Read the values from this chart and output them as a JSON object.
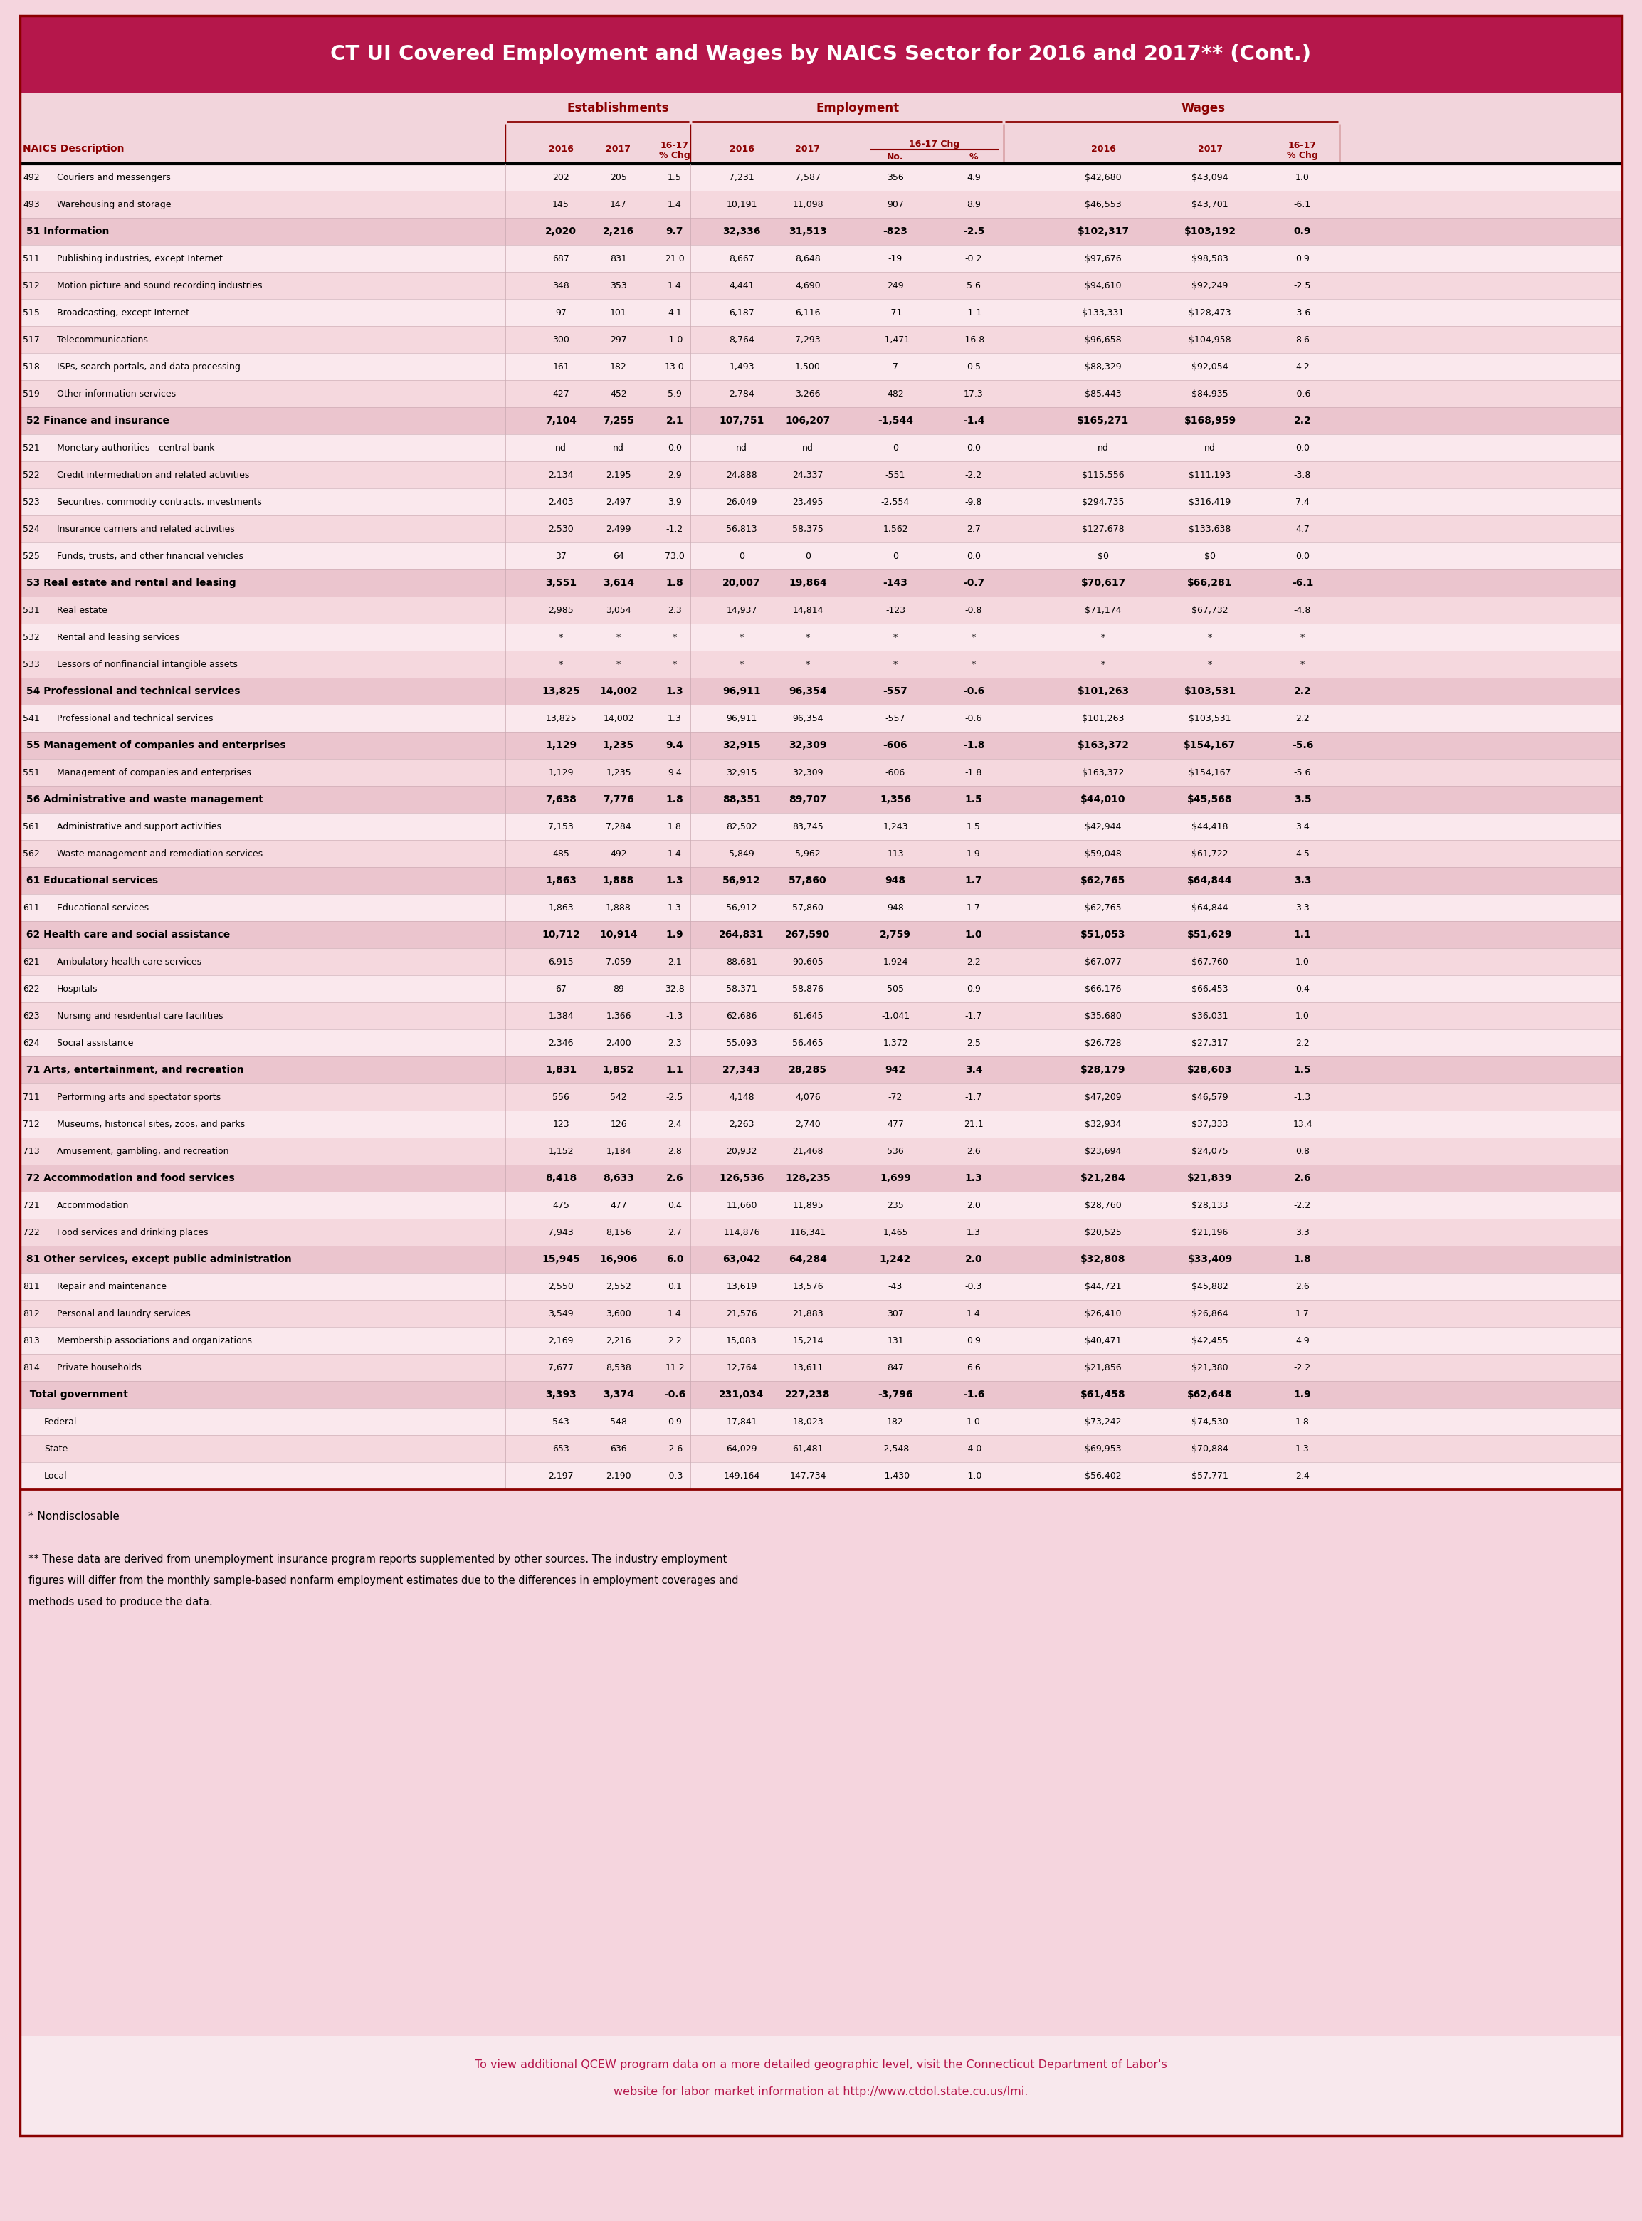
{
  "title": "CT UI Covered Employment and Wages by NAICS Sector for 2016 and 2017** (Cont.)",
  "title_bg": "#B5174B",
  "header_bg": "#F2D5DC",
  "row_bg1": "#FAE8ED",
  "row_bg2": "#F5D8DE",
  "sector_bg": "#EBC5CE",
  "col_hdr_color": "#8B0000",
  "body_color": "#000000",
  "link_color": "#B5174B",
  "footnote1": "* Nondisclosable",
  "footnote2": "** These data are derived from unemployment insurance program reports supplemented by other sources. The industry employment figures will differ from the monthly sample-based nonfarm employment estimates due to the differences in employment coverages and methods used to produce the data.",
  "footer_text": "To view additional QCEW program data on a more detailed geographic level, visit the Connecticut Department of Labor's website for labor market information at http://www.ctdol.state.cu.us/lmi.",
  "rows": [
    {
      "code": "492",
      "desc": "Couriers and messengers",
      "bold": false,
      "sector": false,
      "e16": "202",
      "e17": "205",
      "echg": "1.5",
      "emp16": "7,231",
      "emp17": "7,587",
      "eno": "356",
      "epct": "4.9",
      "w16": "$42,680",
      "w17": "$43,094",
      "wchg": "1.0"
    },
    {
      "code": "493",
      "desc": "Warehousing and storage",
      "bold": false,
      "sector": false,
      "e16": "145",
      "e17": "147",
      "echg": "1.4",
      "emp16": "10,191",
      "emp17": "11,098",
      "eno": "907",
      "epct": "8.9",
      "w16": "$46,553",
      "w17": "$43,701",
      "wchg": "-6.1"
    },
    {
      "code": "51",
      "desc": "Information",
      "bold": true,
      "sector": true,
      "e16": "2,020",
      "e17": "2,216",
      "echg": "9.7",
      "emp16": "32,336",
      "emp17": "31,513",
      "eno": "-823",
      "epct": "-2.5",
      "w16": "$102,317",
      "w17": "$103,192",
      "wchg": "0.9"
    },
    {
      "code": "511",
      "desc": "Publishing industries, except Internet",
      "bold": false,
      "sector": false,
      "e16": "687",
      "e17": "831",
      "echg": "21.0",
      "emp16": "8,667",
      "emp17": "8,648",
      "eno": "-19",
      "epct": "-0.2",
      "w16": "$97,676",
      "w17": "$98,583",
      "wchg": "0.9"
    },
    {
      "code": "512",
      "desc": "Motion picture and sound recording industries",
      "bold": false,
      "sector": false,
      "e16": "348",
      "e17": "353",
      "echg": "1.4",
      "emp16": "4,441",
      "emp17": "4,690",
      "eno": "249",
      "epct": "5.6",
      "w16": "$94,610",
      "w17": "$92,249",
      "wchg": "-2.5"
    },
    {
      "code": "515",
      "desc": "Broadcasting, except Internet",
      "bold": false,
      "sector": false,
      "e16": "97",
      "e17": "101",
      "echg": "4.1",
      "emp16": "6,187",
      "emp17": "6,116",
      "eno": "-71",
      "epct": "-1.1",
      "w16": "$133,331",
      "w17": "$128,473",
      "wchg": "-3.6"
    },
    {
      "code": "517",
      "desc": "Telecommunications",
      "bold": false,
      "sector": false,
      "e16": "300",
      "e17": "297",
      "echg": "-1.0",
      "emp16": "8,764",
      "emp17": "7,293",
      "eno": "-1,471",
      "epct": "-16.8",
      "w16": "$96,658",
      "w17": "$104,958",
      "wchg": "8.6"
    },
    {
      "code": "518",
      "desc": "ISPs, search portals, and data processing",
      "bold": false,
      "sector": false,
      "e16": "161",
      "e17": "182",
      "echg": "13.0",
      "emp16": "1,493",
      "emp17": "1,500",
      "eno": "7",
      "epct": "0.5",
      "w16": "$88,329",
      "w17": "$92,054",
      "wchg": "4.2"
    },
    {
      "code": "519",
      "desc": "Other information services",
      "bold": false,
      "sector": false,
      "e16": "427",
      "e17": "452",
      "echg": "5.9",
      "emp16": "2,784",
      "emp17": "3,266",
      "eno": "482",
      "epct": "17.3",
      "w16": "$85,443",
      "w17": "$84,935",
      "wchg": "-0.6"
    },
    {
      "code": "52",
      "desc": "Finance and insurance",
      "bold": true,
      "sector": true,
      "e16": "7,104",
      "e17": "7,255",
      "echg": "2.1",
      "emp16": "107,751",
      "emp17": "106,207",
      "eno": "-1,544",
      "epct": "-1.4",
      "w16": "$165,271",
      "w17": "$168,959",
      "wchg": "2.2"
    },
    {
      "code": "521",
      "desc": "Monetary authorities - central bank",
      "bold": false,
      "sector": false,
      "e16": "nd",
      "e17": "nd",
      "echg": "0.0",
      "emp16": "nd",
      "emp17": "nd",
      "eno": "0",
      "epct": "0.0",
      "w16": "nd",
      "w17": "nd",
      "wchg": "0.0"
    },
    {
      "code": "522",
      "desc": "Credit intermediation and related activities",
      "bold": false,
      "sector": false,
      "e16": "2,134",
      "e17": "2,195",
      "echg": "2.9",
      "emp16": "24,888",
      "emp17": "24,337",
      "eno": "-551",
      "epct": "-2.2",
      "w16": "$115,556",
      "w17": "$111,193",
      "wchg": "-3.8"
    },
    {
      "code": "523",
      "desc": "Securities, commodity contracts, investments",
      "bold": false,
      "sector": false,
      "e16": "2,403",
      "e17": "2,497",
      "echg": "3.9",
      "emp16": "26,049",
      "emp17": "23,495",
      "eno": "-2,554",
      "epct": "-9.8",
      "w16": "$294,735",
      "w17": "$316,419",
      "wchg": "7.4"
    },
    {
      "code": "524",
      "desc": "Insurance carriers and related activities",
      "bold": false,
      "sector": false,
      "e16": "2,530",
      "e17": "2,499",
      "echg": "-1.2",
      "emp16": "56,813",
      "emp17": "58,375",
      "eno": "1,562",
      "epct": "2.7",
      "w16": "$127,678",
      "w17": "$133,638",
      "wchg": "4.7"
    },
    {
      "code": "525",
      "desc": "Funds, trusts, and other financial vehicles",
      "bold": false,
      "sector": false,
      "e16": "37",
      "e17": "64",
      "echg": "73.0",
      "emp16": "0",
      "emp17": "0",
      "eno": "0",
      "epct": "0.0",
      "w16": "$0",
      "w17": "$0",
      "wchg": "0.0"
    },
    {
      "code": "53",
      "desc": "Real estate and rental and leasing",
      "bold": true,
      "sector": true,
      "e16": "3,551",
      "e17": "3,614",
      "echg": "1.8",
      "emp16": "20,007",
      "emp17": "19,864",
      "eno": "-143",
      "epct": "-0.7",
      "w16": "$70,617",
      "w17": "$66,281",
      "wchg": "-6.1"
    },
    {
      "code": "531",
      "desc": "Real estate",
      "bold": false,
      "sector": false,
      "e16": "2,985",
      "e17": "3,054",
      "echg": "2.3",
      "emp16": "14,937",
      "emp17": "14,814",
      "eno": "-123",
      "epct": "-0.8",
      "w16": "$71,174",
      "w17": "$67,732",
      "wchg": "-4.8"
    },
    {
      "code": "532",
      "desc": "Rental and leasing services",
      "bold": false,
      "sector": false,
      "e16": "*",
      "e17": "*",
      "echg": "*",
      "emp16": "*",
      "emp17": "*",
      "eno": "*",
      "epct": "*",
      "w16": "*",
      "w17": "*",
      "wchg": "*"
    },
    {
      "code": "533",
      "desc": "Lessors of nonfinancial intangible assets",
      "bold": false,
      "sector": false,
      "e16": "*",
      "e17": "*",
      "echg": "*",
      "emp16": "*",
      "emp17": "*",
      "eno": "*",
      "epct": "*",
      "w16": "*",
      "w17": "*",
      "wchg": "*"
    },
    {
      "code": "54",
      "desc": "Professional and technical services",
      "bold": true,
      "sector": true,
      "e16": "13,825",
      "e17": "14,002",
      "echg": "1.3",
      "emp16": "96,911",
      "emp17": "96,354",
      "eno": "-557",
      "epct": "-0.6",
      "w16": "$101,263",
      "w17": "$103,531",
      "wchg": "2.2"
    },
    {
      "code": "541",
      "desc": "Professional and technical services",
      "bold": false,
      "sector": false,
      "e16": "13,825",
      "e17": "14,002",
      "echg": "1.3",
      "emp16": "96,911",
      "emp17": "96,354",
      "eno": "-557",
      "epct": "-0.6",
      "w16": "$101,263",
      "w17": "$103,531",
      "wchg": "2.2"
    },
    {
      "code": "55",
      "desc": "Management of companies and enterprises",
      "bold": true,
      "sector": true,
      "e16": "1,129",
      "e17": "1,235",
      "echg": "9.4",
      "emp16": "32,915",
      "emp17": "32,309",
      "eno": "-606",
      "epct": "-1.8",
      "w16": "$163,372",
      "w17": "$154,167",
      "wchg": "-5.6"
    },
    {
      "code": "551",
      "desc": "Management of companies and enterprises",
      "bold": false,
      "sector": false,
      "e16": "1,129",
      "e17": "1,235",
      "echg": "9.4",
      "emp16": "32,915",
      "emp17": "32,309",
      "eno": "-606",
      "epct": "-1.8",
      "w16": "$163,372",
      "w17": "$154,167",
      "wchg": "-5.6"
    },
    {
      "code": "56",
      "desc": "Administrative and waste management",
      "bold": true,
      "sector": true,
      "e16": "7,638",
      "e17": "7,776",
      "echg": "1.8",
      "emp16": "88,351",
      "emp17": "89,707",
      "eno": "1,356",
      "epct": "1.5",
      "w16": "$44,010",
      "w17": "$45,568",
      "wchg": "3.5"
    },
    {
      "code": "561",
      "desc": "Administrative and support activities",
      "bold": false,
      "sector": false,
      "e16": "7,153",
      "e17": "7,284",
      "echg": "1.8",
      "emp16": "82,502",
      "emp17": "83,745",
      "eno": "1,243",
      "epct": "1.5",
      "w16": "$42,944",
      "w17": "$44,418",
      "wchg": "3.4"
    },
    {
      "code": "562",
      "desc": "Waste management and remediation services",
      "bold": false,
      "sector": false,
      "e16": "485",
      "e17": "492",
      "echg": "1.4",
      "emp16": "5,849",
      "emp17": "5,962",
      "eno": "113",
      "epct": "1.9",
      "w16": "$59,048",
      "w17": "$61,722",
      "wchg": "4.5"
    },
    {
      "code": "61",
      "desc": "Educational services",
      "bold": true,
      "sector": true,
      "e16": "1,863",
      "e17": "1,888",
      "echg": "1.3",
      "emp16": "56,912",
      "emp17": "57,860",
      "eno": "948",
      "epct": "1.7",
      "w16": "$62,765",
      "w17": "$64,844",
      "wchg": "3.3"
    },
    {
      "code": "611",
      "desc": "Educational services",
      "bold": false,
      "sector": false,
      "e16": "1,863",
      "e17": "1,888",
      "echg": "1.3",
      "emp16": "56,912",
      "emp17": "57,860",
      "eno": "948",
      "epct": "1.7",
      "w16": "$62,765",
      "w17": "$64,844",
      "wchg": "3.3"
    },
    {
      "code": "62",
      "desc": "Health care and social assistance",
      "bold": true,
      "sector": true,
      "e16": "10,712",
      "e17": "10,914",
      "echg": "1.9",
      "emp16": "264,831",
      "emp17": "267,590",
      "eno": "2,759",
      "epct": "1.0",
      "w16": "$51,053",
      "w17": "$51,629",
      "wchg": "1.1"
    },
    {
      "code": "621",
      "desc": "Ambulatory health care services",
      "bold": false,
      "sector": false,
      "e16": "6,915",
      "e17": "7,059",
      "echg": "2.1",
      "emp16": "88,681",
      "emp17": "90,605",
      "eno": "1,924",
      "epct": "2.2",
      "w16": "$67,077",
      "w17": "$67,760",
      "wchg": "1.0"
    },
    {
      "code": "622",
      "desc": "Hospitals",
      "bold": false,
      "sector": false,
      "e16": "67",
      "e17": "89",
      "echg": "32.8",
      "emp16": "58,371",
      "emp17": "58,876",
      "eno": "505",
      "epct": "0.9",
      "w16": "$66,176",
      "w17": "$66,453",
      "wchg": "0.4"
    },
    {
      "code": "623",
      "desc": "Nursing and residential care facilities",
      "bold": false,
      "sector": false,
      "e16": "1,384",
      "e17": "1,366",
      "echg": "-1.3",
      "emp16": "62,686",
      "emp17": "61,645",
      "eno": "-1,041",
      "epct": "-1.7",
      "w16": "$35,680",
      "w17": "$36,031",
      "wchg": "1.0"
    },
    {
      "code": "624",
      "desc": "Social assistance",
      "bold": false,
      "sector": false,
      "e16": "2,346",
      "e17": "2,400",
      "echg": "2.3",
      "emp16": "55,093",
      "emp17": "56,465",
      "eno": "1,372",
      "epct": "2.5",
      "w16": "$26,728",
      "w17": "$27,317",
      "wchg": "2.2"
    },
    {
      "code": "71",
      "desc": "Arts, entertainment, and recreation",
      "bold": true,
      "sector": true,
      "e16": "1,831",
      "e17": "1,852",
      "echg": "1.1",
      "emp16": "27,343",
      "emp17": "28,285",
      "eno": "942",
      "epct": "3.4",
      "w16": "$28,179",
      "w17": "$28,603",
      "wchg": "1.5"
    },
    {
      "code": "711",
      "desc": "Performing arts and spectator sports",
      "bold": false,
      "sector": false,
      "e16": "556",
      "e17": "542",
      "echg": "-2.5",
      "emp16": "4,148",
      "emp17": "4,076",
      "eno": "-72",
      "epct": "-1.7",
      "w16": "$47,209",
      "w17": "$46,579",
      "wchg": "-1.3"
    },
    {
      "code": "712",
      "desc": "Museums, historical sites, zoos, and parks",
      "bold": false,
      "sector": false,
      "e16": "123",
      "e17": "126",
      "echg": "2.4",
      "emp16": "2,263",
      "emp17": "2,740",
      "eno": "477",
      "epct": "21.1",
      "w16": "$32,934",
      "w17": "$37,333",
      "wchg": "13.4"
    },
    {
      "code": "713",
      "desc": "Amusement, gambling, and recreation",
      "bold": false,
      "sector": false,
      "e16": "1,152",
      "e17": "1,184",
      "echg": "2.8",
      "emp16": "20,932",
      "emp17": "21,468",
      "eno": "536",
      "epct": "2.6",
      "w16": "$23,694",
      "w17": "$24,075",
      "wchg": "0.8"
    },
    {
      "code": "72",
      "desc": "Accommodation and food services",
      "bold": true,
      "sector": true,
      "e16": "8,418",
      "e17": "8,633",
      "echg": "2.6",
      "emp16": "126,536",
      "emp17": "128,235",
      "eno": "1,699",
      "epct": "1.3",
      "w16": "$21,284",
      "w17": "$21,839",
      "wchg": "2.6"
    },
    {
      "code": "721",
      "desc": "Accommodation",
      "bold": false,
      "sector": false,
      "e16": "475",
      "e17": "477",
      "echg": "0.4",
      "emp16": "11,660",
      "emp17": "11,895",
      "eno": "235",
      "epct": "2.0",
      "w16": "$28,760",
      "w17": "$28,133",
      "wchg": "-2.2"
    },
    {
      "code": "722",
      "desc": "Food services and drinking places",
      "bold": false,
      "sector": false,
      "e16": "7,943",
      "e17": "8,156",
      "echg": "2.7",
      "emp16": "114,876",
      "emp17": "116,341",
      "eno": "1,465",
      "epct": "1.3",
      "w16": "$20,525",
      "w17": "$21,196",
      "wchg": "3.3"
    },
    {
      "code": "81",
      "desc": "Other services, except public administration",
      "bold": true,
      "sector": true,
      "e16": "15,945",
      "e17": "16,906",
      "echg": "6.0",
      "emp16": "63,042",
      "emp17": "64,284",
      "eno": "1,242",
      "epct": "2.0",
      "w16": "$32,808",
      "w17": "$33,409",
      "wchg": "1.8"
    },
    {
      "code": "811",
      "desc": "Repair and maintenance",
      "bold": false,
      "sector": false,
      "e16": "2,550",
      "e17": "2,552",
      "echg": "0.1",
      "emp16": "13,619",
      "emp17": "13,576",
      "eno": "-43",
      "epct": "-0.3",
      "w16": "$44,721",
      "w17": "$45,882",
      "wchg": "2.6"
    },
    {
      "code": "812",
      "desc": "Personal and laundry services",
      "bold": false,
      "sector": false,
      "e16": "3,549",
      "e17": "3,600",
      "echg": "1.4",
      "emp16": "21,576",
      "emp17": "21,883",
      "eno": "307",
      "epct": "1.4",
      "w16": "$26,410",
      "w17": "$26,864",
      "wchg": "1.7"
    },
    {
      "code": "813",
      "desc": "Membership associations and organizations",
      "bold": false,
      "sector": false,
      "e16": "2,169",
      "e17": "2,216",
      "echg": "2.2",
      "emp16": "15,083",
      "emp17": "15,214",
      "eno": "131",
      "epct": "0.9",
      "w16": "$40,471",
      "w17": "$42,455",
      "wchg": "4.9"
    },
    {
      "code": "814",
      "desc": "Private households",
      "bold": false,
      "sector": false,
      "e16": "7,677",
      "e17": "8,538",
      "echg": "11.2",
      "emp16": "12,764",
      "emp17": "13,611",
      "eno": "847",
      "epct": "6.6",
      "w16": "$21,856",
      "w17": "$21,380",
      "wchg": "-2.2"
    },
    {
      "code": "",
      "desc": "Total government",
      "bold": true,
      "sector": true,
      "e16": "3,393",
      "e17": "3,374",
      "echg": "-0.6",
      "emp16": "231,034",
      "emp17": "227,238",
      "eno": "-3,796",
      "epct": "-1.6",
      "w16": "$61,458",
      "w17": "$62,648",
      "wchg": "1.9"
    },
    {
      "code": "",
      "desc": "Federal",
      "bold": false,
      "sector": false,
      "indent": true,
      "e16": "543",
      "e17": "548",
      "echg": "0.9",
      "emp16": "17,841",
      "emp17": "18,023",
      "eno": "182",
      "epct": "1.0",
      "w16": "$73,242",
      "w17": "$74,530",
      "wchg": "1.8"
    },
    {
      "code": "",
      "desc": "State",
      "bold": false,
      "sector": false,
      "indent": true,
      "e16": "653",
      "e17": "636",
      "echg": "-2.6",
      "emp16": "64,029",
      "emp17": "61,481",
      "eno": "-2,548",
      "epct": "-4.0",
      "w16": "$69,953",
      "w17": "$70,884",
      "wchg": "1.3"
    },
    {
      "code": "",
      "desc": "Local",
      "bold": false,
      "sector": false,
      "indent": true,
      "e16": "2,197",
      "e17": "2,190",
      "echg": "-0.3",
      "emp16": "149,164",
      "emp17": "147,734",
      "eno": "-1,430",
      "epct": "-1.0",
      "w16": "$56,402",
      "w17": "$57,771",
      "wchg": "2.4"
    }
  ]
}
